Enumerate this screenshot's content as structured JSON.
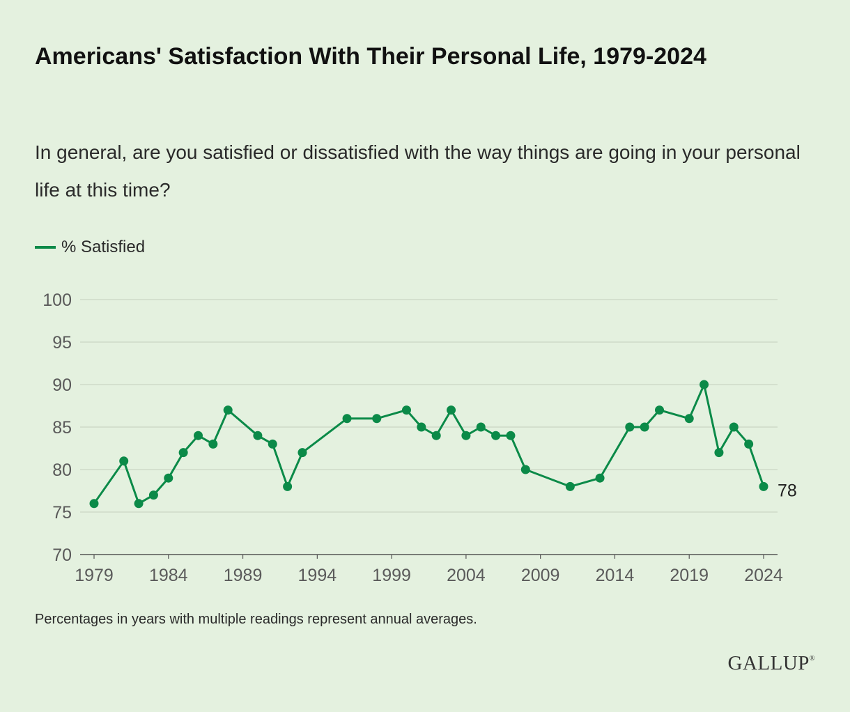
{
  "title": "Americans' Satisfaction With Their Personal Life, 1979-2024",
  "subtitle": "In general, are you satisfied or dissatisfied with the way things are going in your personal life at this time?",
  "legend": {
    "label": "% Satisfied"
  },
  "note": "Percentages in years with multiple readings represent annual averages.",
  "brand": "GALLUP",
  "colors": {
    "background": "#e4f1df",
    "line": "#0b8a48",
    "grid": "#c9d6c4",
    "axis": "#555555",
    "tick_text": "#5a5a5a"
  },
  "chart_data": {
    "type": "line",
    "title": "Americans' Satisfaction With Their Personal Life, 1979-2024",
    "xlabel": "",
    "ylabel": "",
    "xlim": [
      1979,
      2024
    ],
    "ylim": [
      70,
      100
    ],
    "grid": true,
    "legend_position": "top-left",
    "x_ticks": [
      1979,
      1984,
      1989,
      1994,
      1999,
      2004,
      2009,
      2014,
      2019,
      2024
    ],
    "y_ticks": [
      70,
      75,
      80,
      85,
      90,
      95,
      100
    ],
    "end_label": "78",
    "series": [
      {
        "name": "% Satisfied",
        "color": "#0b8a48",
        "x": [
          1979,
          1981,
          1982,
          1983,
          1984,
          1985,
          1986,
          1987,
          1988,
          1990,
          1991,
          1992,
          1993,
          1996,
          1998,
          2000,
          2001,
          2002,
          2003,
          2004,
          2005,
          2006,
          2007,
          2008,
          2011,
          2013,
          2015,
          2016,
          2017,
          2019,
          2020,
          2021,
          2022,
          2023,
          2024
        ],
        "y": [
          76,
          81,
          76,
          77,
          79,
          82,
          84,
          83,
          87,
          84,
          83,
          78,
          82,
          86,
          86,
          87,
          85,
          84,
          87,
          84,
          85,
          84,
          84,
          80,
          78,
          79,
          85,
          85,
          87,
          86,
          90,
          82,
          85,
          83,
          78
        ]
      }
    ]
  }
}
